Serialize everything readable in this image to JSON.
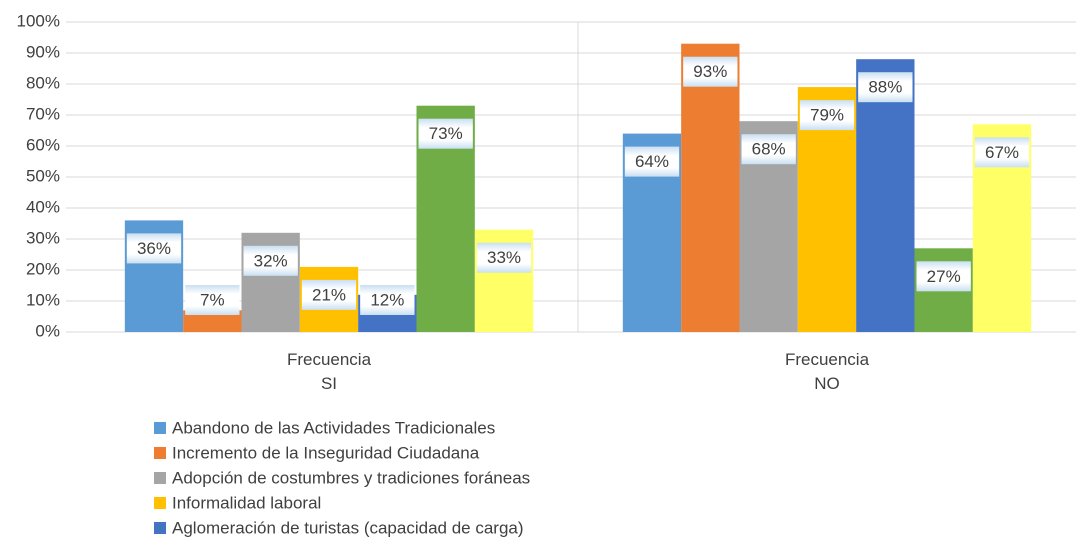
{
  "chart_data": {
    "type": "bar",
    "categories": [
      "Frecuencia\nSI",
      "Frecuencia\nNO"
    ],
    "series": [
      {
        "name": "Abandono de las Actividades Tradicionales",
        "color": "#5b9bd5",
        "values": [
          36,
          64
        ],
        "value_labels": [
          "36%",
          "64%"
        ]
      },
      {
        "name": "Incremento de la Inseguridad Ciudadana",
        "color": "#ed7d31",
        "values": [
          7,
          93
        ],
        "value_labels": [
          "7%",
          "93%"
        ]
      },
      {
        "name": "Adopción de costumbres y tradiciones foráneas",
        "color": "#a5a5a5",
        "values": [
          32,
          68
        ],
        "value_labels": [
          "32%",
          "68%"
        ]
      },
      {
        "name": "Informalidad laboral",
        "color": "#ffc000",
        "values": [
          21,
          79
        ],
        "value_labels": [
          "21%",
          "79%"
        ]
      },
      {
        "name": "Aglomeración de turistas (capacidad de carga)",
        "color": "#4472c4",
        "values": [
          12,
          88
        ],
        "value_labels": [
          "12%",
          "88%"
        ]
      },
      {
        "color": "#70ad47",
        "values": [
          73,
          27
        ],
        "value_labels": [
          "73%",
          "27%"
        ]
      },
      {
        "color": "#ffff66",
        "values": [
          33,
          67
        ],
        "value_labels": [
          "33%",
          "67%"
        ]
      }
    ],
    "ylim": [
      0,
      100
    ],
    "yticks": [
      {
        "value": 0,
        "label": "0%"
      },
      {
        "value": 10,
        "label": "10%"
      },
      {
        "value": 20,
        "label": "20%"
      },
      {
        "value": 30,
        "label": "30%"
      },
      {
        "value": 40,
        "label": "40%"
      },
      {
        "value": 50,
        "label": "50%"
      },
      {
        "value": 60,
        "label": "60%"
      },
      {
        "value": 70,
        "label": "70%"
      },
      {
        "value": 80,
        "label": "80%"
      },
      {
        "value": 90,
        "label": "90%"
      },
      {
        "value": 100,
        "label": "100%"
      }
    ],
    "grid": true
  }
}
